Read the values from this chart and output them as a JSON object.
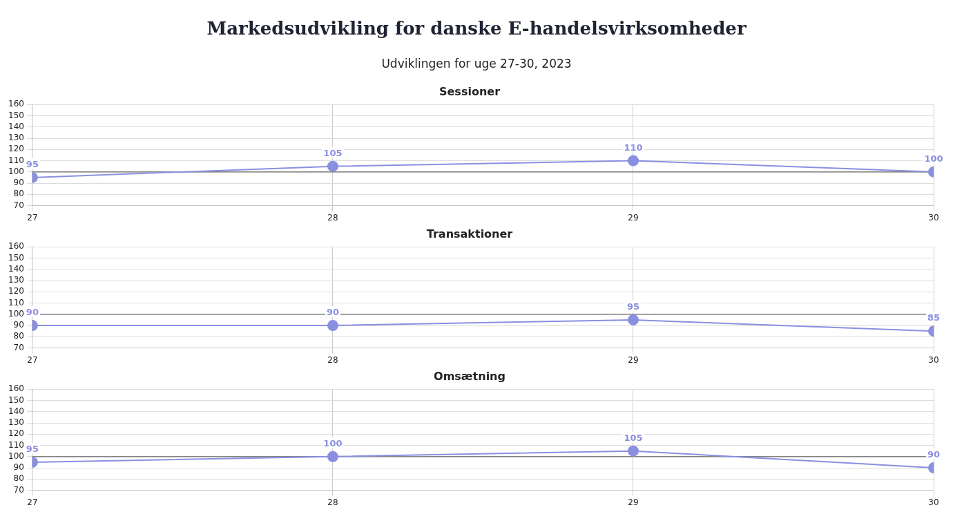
{
  "chart_data": [
    {
      "type": "other",
      "title": "Markedsudvikling for danske E-handelsvirksomheder",
      "subtitle": "Udviklingen for uge 27-30, 2023"
    },
    {
      "type": "line",
      "title": "Sessioner",
      "x": [
        27,
        28,
        29,
        30
      ],
      "series": [
        {
          "color": "#8a8fe0",
          "values": [
            95,
            105,
            110,
            100
          ]
        }
      ],
      "xlim": [
        27,
        30
      ],
      "xticks": [
        27,
        28,
        29,
        30
      ],
      "ylim": [
        70,
        160
      ],
      "yticks": [
        70,
        80,
        90,
        100,
        110,
        120,
        130,
        140,
        150,
        160
      ],
      "ref_lines": [
        {
          "axis": "y",
          "value": 100,
          "color": "#666666"
        }
      ],
      "data_labels": true,
      "grid": true,
      "marker": "circle",
      "line_style": "solid",
      "legend": false
    },
    {
      "type": "line",
      "title": "Transaktioner",
      "x": [
        27,
        28,
        29,
        30
      ],
      "series": [
        {
          "color": "#8a8fe0",
          "values": [
            90,
            90,
            95,
            85
          ]
        }
      ],
      "xlim": [
        27,
        30
      ],
      "xticks": [
        27,
        28,
        29,
        30
      ],
      "ylim": [
        70,
        160
      ],
      "yticks": [
        70,
        80,
        90,
        100,
        110,
        120,
        130,
        140,
        150,
        160
      ],
      "ref_lines": [
        {
          "axis": "y",
          "value": 100,
          "color": "#666666"
        }
      ],
      "data_labels": true,
      "grid": true,
      "marker": "circle",
      "line_style": "solid",
      "legend": false
    },
    {
      "type": "line",
      "title": "Omsætning",
      "x": [
        27,
        28,
        29,
        30
      ],
      "series": [
        {
          "color": "#8a8fe0",
          "values": [
            95,
            100,
            105,
            90
          ]
        }
      ],
      "xlim": [
        27,
        30
      ],
      "xticks": [
        27,
        28,
        29,
        30
      ],
      "ylim": [
        70,
        160
      ],
      "yticks": [
        70,
        80,
        90,
        100,
        110,
        120,
        130,
        140,
        150,
        160
      ],
      "ref_lines": [
        {
          "axis": "y",
          "value": 100,
          "color": "#666666"
        }
      ],
      "data_labels": true,
      "grid": true,
      "marker": "circle",
      "line_style": "solid",
      "legend": false
    }
  ]
}
